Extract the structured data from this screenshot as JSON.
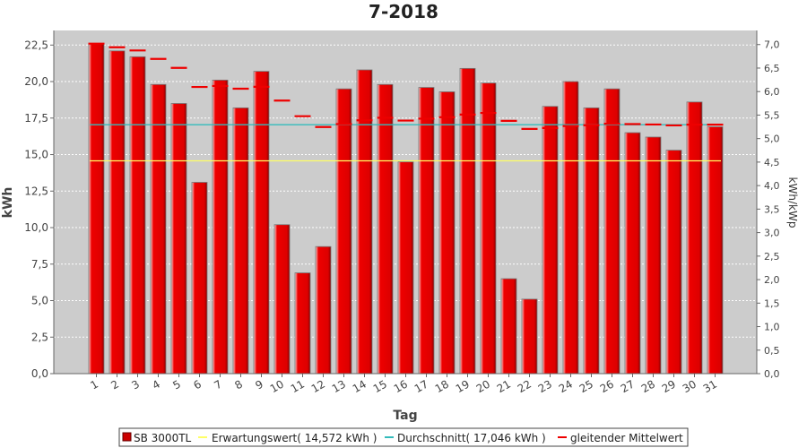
{
  "chart_data": {
    "type": "bar",
    "title": "7-2018",
    "xlabel": "Tag",
    "ylabel": "kWh",
    "ylabel_right": "kWh/kWp",
    "ylim": [
      0,
      23.5
    ],
    "ylim_right": [
      0,
      7.3
    ],
    "yticks": [
      "0,0",
      "2,5",
      "5,0",
      "7,5",
      "10,0",
      "12,5",
      "15,0",
      "17,5",
      "20,0",
      "22,5"
    ],
    "yticks_right": [
      "0,0",
      "0,5",
      "1,0",
      "1,5",
      "2,0",
      "2,5",
      "3,0",
      "3,5",
      "4,0",
      "4,5",
      "5,0",
      "5,5",
      "6,0",
      "6,5",
      "7,0"
    ],
    "grid": true,
    "legend_position": "bottom",
    "colors": {
      "bar": "#ee0000",
      "expectation": "#ffff66",
      "average": "#33bbbb",
      "moving_average": "#ee0000",
      "plot_bg": "#cccccc"
    },
    "categories": [
      "1",
      "2",
      "3",
      "4",
      "5",
      "6",
      "7",
      "8",
      "9",
      "10",
      "11",
      "12",
      "13",
      "14",
      "15",
      "16",
      "17",
      "18",
      "19",
      "20",
      "21",
      "22",
      "23",
      "24",
      "25",
      "26",
      "27",
      "28",
      "29",
      "30",
      "31"
    ],
    "series": [
      {
        "name": "SB 3000TL",
        "kind": "bar",
        "values": [
          22.6,
          22.1,
          21.7,
          19.8,
          18.5,
          13.1,
          20.1,
          18.2,
          20.7,
          10.2,
          6.9,
          8.7,
          19.5,
          20.8,
          19.8,
          14.5,
          19.6,
          19.3,
          20.9,
          19.9,
          6.5,
          5.1,
          18.3,
          20.0,
          18.2,
          19.5,
          16.5,
          16.2,
          15.3,
          18.6,
          16.9
        ]
      },
      {
        "name": "Erwartungswert( 14,572 kWh )",
        "kind": "line",
        "value": 14.572
      },
      {
        "name": "Durchschnitt( 17,046 kWh )",
        "kind": "line",
        "value": 17.046
      },
      {
        "name": "gleitender Mittelwert",
        "kind": "dashes",
        "values": [
          22.6,
          22.35,
          22.13,
          21.55,
          20.94,
          19.63,
          19.7,
          19.51,
          19.64,
          18.7,
          17.63,
          16.89,
          17.09,
          17.35,
          17.52,
          17.33,
          17.46,
          17.56,
          17.74,
          17.85,
          17.31,
          16.76,
          16.82,
          16.96,
          17.01,
          17.11,
          17.09,
          17.06,
          17.0,
          17.05,
          17.05
        ]
      }
    ]
  }
}
